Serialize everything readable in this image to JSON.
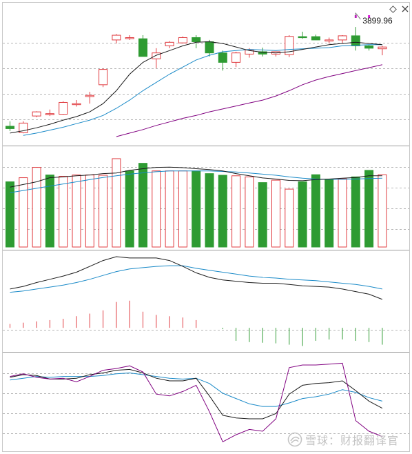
{
  "controls": {
    "settings_icon": "diamond-icon",
    "close_icon": "close-icon"
  },
  "watermark": {
    "logo_icon": "snowball-logo-icon",
    "text": "雪球：财报翻译官"
  },
  "colors": {
    "up": "#e0393e",
    "down": "#2e9b32",
    "ma_short": "#1a1a1a",
    "ma_mid": "#1a8ac8",
    "ma_long": "#800080",
    "grid": "#b4b4b4",
    "divider": "#9a9a9a",
    "marker": "#e020e0"
  },
  "chart_data": [
    {
      "panel": "price",
      "type": "candlestick",
      "grid": true,
      "annotation": {
        "label": "3899.96",
        "value": 3899.96
      },
      "ylim": [
        2800,
        3900
      ],
      "candles": [
        {
          "o": 2958,
          "h": 3000,
          "l": 2918,
          "c": 2938
        },
        {
          "o": 2903,
          "h": 3000,
          "l": 2898,
          "c": 2985
        },
        {
          "o": 3045,
          "h": 3085,
          "l": 3035,
          "c": 3080
        },
        {
          "o": 3065,
          "h": 3100,
          "l": 3045,
          "c": 3065
        },
        {
          "o": 3060,
          "h": 3170,
          "l": 3055,
          "c": 3160
        },
        {
          "o": 3150,
          "h": 3180,
          "l": 3125,
          "c": 3150
        },
        {
          "o": 3210,
          "h": 3250,
          "l": 3150,
          "c": 3220
        },
        {
          "o": 3310,
          "h": 3450,
          "l": 3290,
          "c": 3440
        },
        {
          "o": 3690,
          "h": 3740,
          "l": 3660,
          "c": 3730
        },
        {
          "o": 3710,
          "h": 3730,
          "l": 3690,
          "c": 3710
        },
        {
          "o": 3700,
          "h": 3730,
          "l": 3550,
          "c": 3550
        },
        {
          "o": 3530,
          "h": 3620,
          "l": 3450,
          "c": 3580
        },
        {
          "o": 3640,
          "h": 3680,
          "l": 3620,
          "c": 3670
        },
        {
          "o": 3665,
          "h": 3720,
          "l": 3660,
          "c": 3710
        },
        {
          "o": 3710,
          "h": 3730,
          "l": 3620,
          "c": 3675
        },
        {
          "o": 3675,
          "h": 3690,
          "l": 3550,
          "c": 3580
        },
        {
          "o": 3580,
          "h": 3600,
          "l": 3430,
          "c": 3500
        },
        {
          "o": 3500,
          "h": 3590,
          "l": 3460,
          "c": 3580
        },
        {
          "o": 3570,
          "h": 3620,
          "l": 3540,
          "c": 3605
        },
        {
          "o": 3590,
          "h": 3625,
          "l": 3550,
          "c": 3570
        },
        {
          "o": 3570,
          "h": 3590,
          "l": 3550,
          "c": 3590
        },
        {
          "o": 3565,
          "h": 3730,
          "l": 3545,
          "c": 3720
        },
        {
          "o": 3718,
          "h": 3760,
          "l": 3700,
          "c": 3710
        },
        {
          "o": 3718,
          "h": 3735,
          "l": 3690,
          "c": 3690
        },
        {
          "o": 3690,
          "h": 3710,
          "l": 3660,
          "c": 3690
        },
        {
          "o": 3690,
          "h": 3730,
          "l": 3665,
          "c": 3725
        },
        {
          "o": 3725,
          "h": 3800,
          "l": 3600,
          "c": 3640
        },
        {
          "o": 3640,
          "h": 3650,
          "l": 3600,
          "c": 3620
        },
        {
          "o": 3615,
          "h": 3640,
          "l": 3560,
          "c": 3630
        }
      ],
      "ma_short": [
        2900,
        2920,
        2945,
        2975,
        3010,
        3040,
        3080,
        3150,
        3260,
        3400,
        3500,
        3560,
        3600,
        3640,
        3670,
        3675,
        3660,
        3630,
        3600,
        3585,
        3580,
        3590,
        3610,
        3630,
        3650,
        3660,
        3670,
        3660,
        3650
      ],
      "ma_mid": [
        null,
        2880,
        2900,
        2925,
        2950,
        2980,
        3010,
        3050,
        3110,
        3180,
        3260,
        3330,
        3400,
        3460,
        3520,
        3560,
        3590,
        3600,
        3610,
        3605,
        3600,
        3610,
        3615,
        3620,
        3625,
        3640,
        3645,
        3650,
        3650
      ],
      "ma_long": [
        null,
        null,
        null,
        null,
        null,
        null,
        null,
        null,
        2870,
        2900,
        2930,
        2965,
        2995,
        3025,
        3050,
        3080,
        3105,
        3130,
        3155,
        3180,
        3215,
        3260,
        3310,
        3350,
        3380,
        3405,
        3430,
        3455,
        3480
      ],
      "markers": [
        26,
        27
      ]
    },
    {
      "panel": "volume",
      "type": "bar",
      "grid": true,
      "ylim": [
        0,
        330
      ],
      "values": [
        240,
        255,
        293,
        265,
        260,
        265,
        265,
        264,
        325,
        280,
        308,
        280,
        280,
        280,
        280,
        270,
        264,
        262,
        258,
        237,
        246,
        213,
        240,
        266,
        248,
        251,
        258,
        282,
        266
      ],
      "up_down": [
        "d",
        "u",
        "u",
        "d",
        "u",
        "u",
        "u",
        "u",
        "u",
        "d",
        "d",
        "u",
        "u",
        "u",
        "d",
        "d",
        "d",
        "u",
        "u",
        "d",
        "u",
        "u",
        "d",
        "d",
        "d",
        "u",
        "d",
        "d",
        "u"
      ],
      "ma_short": [
        220,
        230,
        240,
        255,
        258,
        262,
        265,
        270,
        272,
        282,
        288,
        293,
        294,
        292,
        288,
        285,
        280,
        270,
        262,
        254,
        250,
        245,
        244,
        248,
        250,
        253,
        256,
        262,
        262
      ],
      "ma_mid": [
        200,
        208,
        216,
        224,
        232,
        240,
        248,
        256,
        262,
        268,
        273,
        277,
        280,
        280,
        280,
        280,
        278,
        276,
        272,
        268,
        264,
        258,
        253,
        250,
        249,
        249,
        250,
        252,
        253
      ]
    },
    {
      "panel": "macd",
      "type": "bar",
      "grid": false,
      "ylim": [
        -35,
        110
      ],
      "hist": [
        6,
        8,
        10,
        12,
        14,
        18,
        22,
        27,
        40,
        42,
        25,
        20,
        18,
        16,
        12,
        0,
        -2,
        -20,
        -22,
        -23,
        -24,
        -26,
        -28,
        -20,
        -18,
        -18,
        -20,
        -22,
        -26
      ],
      "dif": [
        60,
        64,
        70,
        75,
        80,
        86,
        95,
        104,
        110,
        108,
        108,
        108,
        104,
        95,
        85,
        78,
        74,
        72,
        70,
        69,
        69,
        67,
        65,
        64,
        63,
        60,
        56,
        52,
        44
      ],
      "dea": [
        55,
        57,
        60,
        63,
        66,
        70,
        75,
        81,
        87,
        91,
        93,
        95,
        96,
        96,
        92,
        89,
        86,
        83,
        80,
        78,
        77,
        75,
        74,
        73,
        71,
        69,
        67,
        64,
        60
      ]
    },
    {
      "panel": "kdj",
      "type": "line",
      "grid": true,
      "ylim": [
        0,
        100
      ],
      "j": [
        80,
        83,
        79,
        77,
        78,
        74,
        80,
        87,
        89,
        92,
        85,
        60,
        58,
        63,
        70,
        40,
        6,
        14,
        20,
        18,
        32,
        90,
        93,
        93,
        94,
        95,
        30,
        18,
        12
      ],
      "k": [
        79,
        82,
        81,
        77,
        77,
        78,
        82,
        84,
        87,
        88,
        84,
        78,
        75,
        75,
        78,
        58,
        36,
        33,
        32,
        32,
        38,
        60,
        70,
        72,
        73,
        75,
        64,
        52,
        44
      ],
      "d": [
        76,
        78,
        80,
        79,
        80,
        80,
        80,
        81,
        83,
        84,
        82,
        80,
        78,
        77,
        78,
        72,
        61,
        55,
        49,
        46,
        46,
        50,
        55,
        57,
        60,
        65,
        62,
        56,
        52
      ]
    }
  ]
}
